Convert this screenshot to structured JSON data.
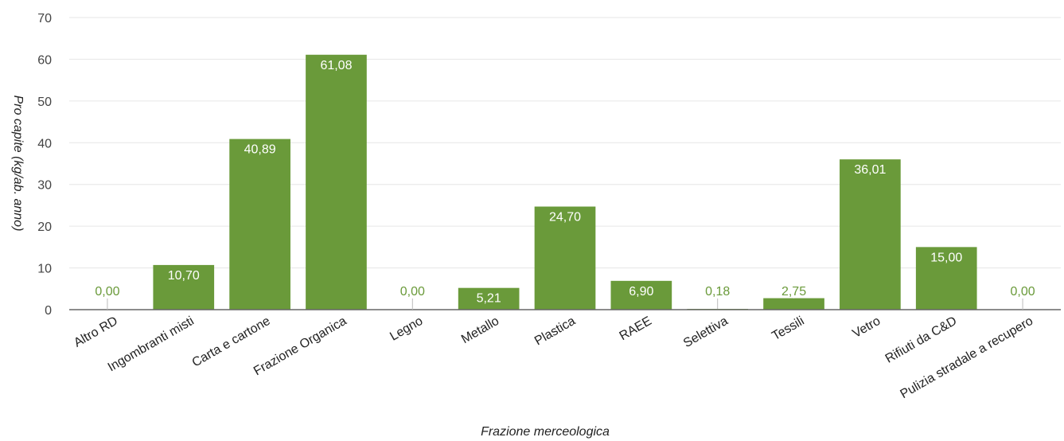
{
  "chart_data": {
    "type": "bar",
    "categories": [
      "Altro RD",
      "Ingombranti misti",
      "Carta e cartone",
      "Frazione Organica",
      "Legno",
      "Metallo",
      "Plastica",
      "RAEE",
      "Selettiva",
      "Tessili",
      "Vetro",
      "Rifiuti da C&D",
      "Pulizia stradale a recupero"
    ],
    "values": [
      0.0,
      10.7,
      40.89,
      61.08,
      0.0,
      5.21,
      24.7,
      6.9,
      0.18,
      2.75,
      36.01,
      15.0,
      0.0
    ],
    "data_labels": [
      "0,00",
      "10,70",
      "40,89",
      "61,08",
      "0,00",
      "5,21",
      "24,70",
      "6,90",
      "0,18",
      "2,75",
      "36,01",
      "15,00",
      "0,00"
    ],
    "yticks": [
      0,
      10,
      20,
      30,
      40,
      50,
      60,
      70
    ],
    "ylim": [
      0,
      70
    ],
    "xlabel": "Frazione merceologica",
    "ylabel": "Pro capite (kg/ab. anno)",
    "grid": true,
    "legend": "none",
    "colors": {
      "bar": "#6a9a3a",
      "label_inside": "#ffffff",
      "label_outside": "#6a9a3a",
      "grid": "#e6e6e6",
      "axis": "#666666"
    }
  }
}
